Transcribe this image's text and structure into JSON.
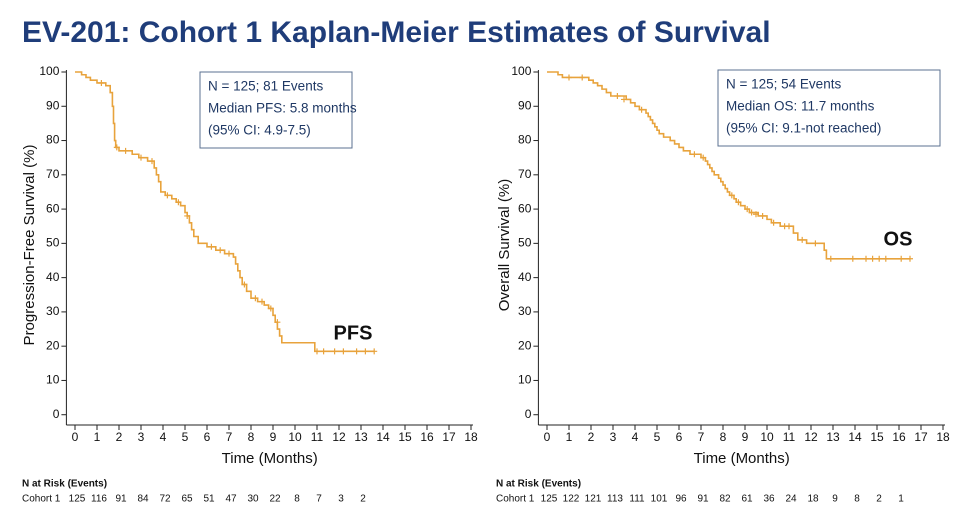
{
  "title": "EV-201: Cohort 1 Kaplan-Meier Estimates of Survival",
  "chart_data": [
    {
      "type": "step",
      "color": "#e8a33c",
      "xlabel": "Time (Months)",
      "ylabel": "Progression-Free Survival (%)",
      "annotation": [
        "N = 125; 81 Events",
        "Median PFS: 5.8 months",
        "(95% CI: 4.9-7.5)"
      ],
      "curve_label": "PFS",
      "x": [
        0,
        0.3,
        0.5,
        0.7,
        1,
        1.4,
        1.6,
        1.7,
        1.75,
        1.8,
        1.85,
        2,
        2.6,
        2.9,
        3.3,
        3.6,
        3.7,
        3.8,
        3.9,
        4.1,
        4.4,
        4.6,
        4.8,
        5,
        5.1,
        5.2,
        5.3,
        5.4,
        5.6,
        6,
        6.4,
        6.8,
        7.2,
        7.3,
        7.4,
        7.5,
        7.6,
        7.8,
        8,
        8.3,
        8.6,
        8.8,
        9,
        9.1,
        9.2,
        9.3,
        9.4,
        10.9,
        13.6
      ],
      "values": [
        100,
        99.2,
        98.4,
        97.6,
        96.8,
        96,
        94,
        90,
        85,
        80,
        78,
        77,
        76,
        75,
        74,
        72,
        70,
        68,
        65,
        64,
        63,
        62,
        61,
        59,
        58,
        56,
        54,
        52,
        50,
        49,
        48,
        47,
        46,
        44,
        42,
        40,
        38,
        36,
        34,
        33,
        32,
        31,
        29,
        27,
        25,
        23,
        21,
        18.5,
        18.5
      ],
      "censored": {
        "x": [
          1.2,
          1.9,
          2.3,
          3.0,
          3.5,
          4.2,
          4.7,
          5.1,
          6.2,
          6.6,
          7.0,
          7.7,
          8.2,
          8.5,
          8.9,
          9.2,
          11.0,
          11.3,
          11.8,
          12.2,
          12.8,
          13.2,
          13.6
        ],
        "y": [
          96.8,
          78,
          77,
          75,
          74,
          64,
          62,
          58,
          49,
          48,
          47,
          38,
          34,
          33,
          31,
          27,
          18.5,
          18.5,
          18.5,
          18.5,
          18.5,
          18.5,
          18.5
        ]
      },
      "xlim": [
        -0.3,
        18
      ],
      "ylim": [
        -3,
        100
      ],
      "xticks": [
        0,
        1,
        2,
        3,
        4,
        5,
        6,
        7,
        8,
        9,
        10,
        11,
        12,
        13,
        14,
        15,
        16,
        17,
        18
      ],
      "yticks": [
        0,
        10,
        20,
        30,
        40,
        50,
        60,
        70,
        80,
        90,
        100
      ],
      "risk_table": {
        "title": "N at Risk (Events)",
        "row_label": "Cohort 1",
        "values": [
          125,
          116,
          91,
          84,
          72,
          65,
          51,
          47,
          30,
          22,
          8,
          7,
          3,
          2
        ]
      }
    },
    {
      "type": "step",
      "color": "#e8a33c",
      "xlabel": "Time (Months)",
      "ylabel": "Overall Survival (%)",
      "annotation": [
        "N = 125; 54 Events",
        "Median OS: 11.7 months",
        "(95% CI: 9.1-not reached)"
      ],
      "curve_label": "OS",
      "x": [
        0,
        0.5,
        0.7,
        1.9,
        2.1,
        2.3,
        2.5,
        2.7,
        2.9,
        3.6,
        3.8,
        4,
        4.2,
        4.5,
        4.6,
        4.7,
        4.8,
        4.9,
        5,
        5.1,
        5.3,
        5.6,
        5.8,
        6,
        6.2,
        6.5,
        7,
        7.2,
        7.3,
        7.4,
        7.5,
        7.6,
        7.8,
        7.9,
        8,
        8.1,
        8.2,
        8.3,
        8.5,
        8.6,
        8.8,
        9,
        9.2,
        9.6,
        10,
        10.2,
        10.6,
        11.2,
        11.4,
        11.8,
        12.6,
        12.7,
        16.5
      ],
      "values": [
        100,
        99.2,
        98.4,
        97.6,
        96.8,
        96,
        95,
        94,
        93,
        92,
        91,
        90,
        89,
        88,
        87,
        86,
        85,
        84,
        83,
        82,
        81,
        80,
        79,
        78,
        77,
        76,
        75,
        74,
        73,
        72,
        71,
        70,
        69,
        68,
        67,
        66,
        65,
        64,
        63,
        62,
        61,
        60,
        59,
        58,
        57,
        56,
        55,
        53,
        51,
        50,
        48,
        45.5,
        45.5
      ],
      "censored": {
        "x": [
          1,
          1.6,
          3.2,
          3.5,
          4.3,
          6.7,
          7.1,
          8.4,
          8.7,
          9.1,
          9.3,
          9.5,
          9.8,
          10.3,
          10.8,
          11.0,
          11.6,
          12.2,
          12.9,
          13.9,
          14.5,
          14.8,
          15.1,
          15.4,
          16.1,
          16.5
        ],
        "y": [
          98.4,
          98.4,
          93,
          92,
          89,
          76,
          75,
          64,
          62,
          60,
          59,
          58.5,
          58,
          56,
          55,
          55,
          51,
          50,
          45.5,
          45.5,
          45.5,
          45.5,
          45.5,
          45.5,
          45.5,
          45.5
        ]
      },
      "xlim": [
        -0.3,
        18
      ],
      "ylim": [
        -3,
        100
      ],
      "xticks": [
        0,
        1,
        2,
        3,
        4,
        5,
        6,
        7,
        8,
        9,
        10,
        11,
        12,
        13,
        14,
        15,
        16,
        17,
        18
      ],
      "yticks": [
        0,
        10,
        20,
        30,
        40,
        50,
        60,
        70,
        80,
        90,
        100
      ],
      "risk_table": {
        "title": "N at Risk (Events)",
        "row_label": "Cohort 1",
        "values": [
          125,
          122,
          121,
          113,
          111,
          101,
          96,
          91,
          82,
          61,
          36,
          24,
          18,
          9,
          8,
          2,
          1
        ]
      }
    }
  ]
}
